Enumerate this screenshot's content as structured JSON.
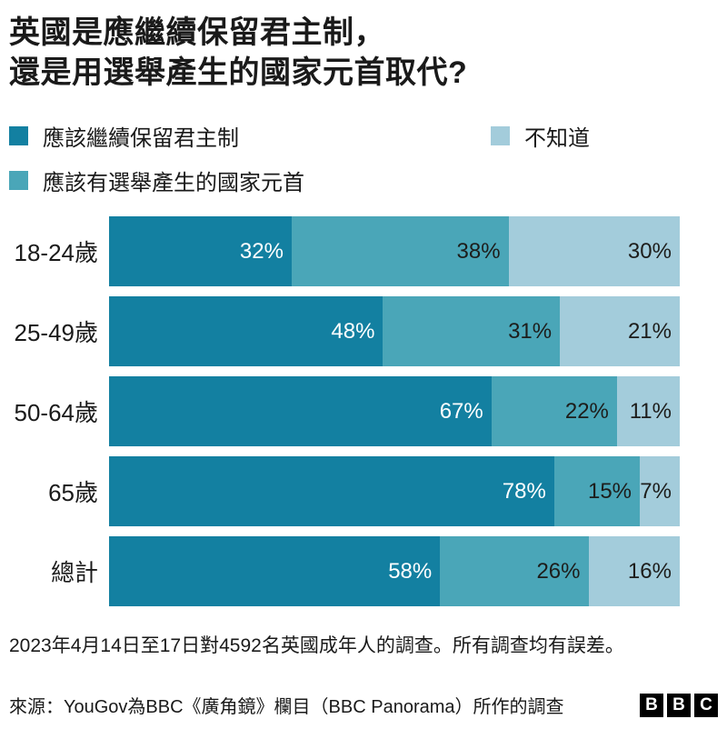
{
  "title": {
    "line1": "英國是應繼續保留君主制，",
    "line2": "還是用選舉產生的國家元首取代?"
  },
  "legend": [
    {
      "label": "應該繼續保留君主制",
      "color": "#1380A1"
    },
    {
      "label": "應該有選舉產生的國家元首",
      "color": "#4AA6B8"
    },
    {
      "label": "不知道",
      "color": "#A3CCDB"
    }
  ],
  "chart_data": {
    "type": "bar",
    "orientation": "horizontal-stacked",
    "title": "英國是應繼續保留君主制，還是用選舉產生的國家元首取代?",
    "categories": [
      "18-24歲",
      "25-49歲",
      "50-64歲",
      "65歲",
      "總計"
    ],
    "series": [
      {
        "name": "應該繼續保留君主制",
        "color": "#1380A1",
        "text_color": "#ffffff",
        "values": [
          32,
          48,
          67,
          78,
          58
        ]
      },
      {
        "name": "應該有選舉產生的國家元首",
        "color": "#4AA6B8",
        "text_color": "#1d1d1b",
        "values": [
          38,
          31,
          22,
          15,
          26
        ]
      },
      {
        "name": "不知道",
        "color": "#A3CCDB",
        "text_color": "#1d1d1b",
        "values": [
          30,
          21,
          11,
          7,
          16
        ]
      }
    ],
    "value_suffix": "%",
    "xlim": [
      0,
      100
    ],
    "legend_position": "top",
    "grid": false
  },
  "footnote": "2023年4月14日至17日對4592名英國成年人的調查。所有調查均有誤差。",
  "footer": {
    "source": "來源：YouGov為BBC《廣角鏡》欄目（BBC Panorama）所作的調查",
    "logo_letters": [
      "B",
      "B",
      "C"
    ]
  }
}
